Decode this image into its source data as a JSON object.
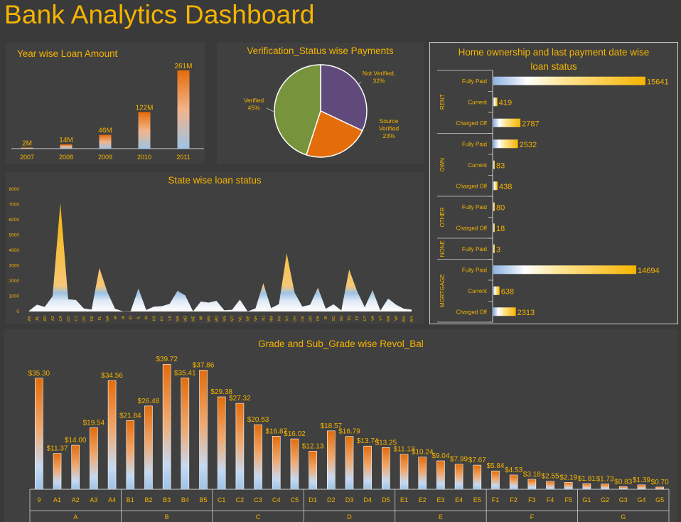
{
  "dashboard": {
    "title": "Bank Analytics Dashboard"
  },
  "colors": {
    "background": "#3a3a3a",
    "panel": "#404040",
    "accent": "#f5b400",
    "orange": "#e46c0a",
    "blue": "#9dc3e6",
    "pie_green": "#77933c",
    "pie_purple": "#604a7b",
    "pie_orange": "#e46c0a"
  },
  "chart_data": [
    {
      "id": "year",
      "type": "bar",
      "title": "Year wise Loan Amount",
      "categories": [
        "2007",
        "2008",
        "2009",
        "2010",
        "2011"
      ],
      "values": [
        2,
        14,
        46,
        122,
        261
      ],
      "labels": [
        "2M",
        "14M",
        "46M",
        "122M",
        "261M"
      ],
      "ylim": [
        0,
        261
      ]
    },
    {
      "id": "verification",
      "type": "pie",
      "title": "Verification_Status wise Payments",
      "slices": [
        {
          "name": "Not Verified",
          "value": 32,
          "label": "32%"
        },
        {
          "name": "Source Verified",
          "value": 23,
          "label": "23%"
        },
        {
          "name": "Verified",
          "value": 45,
          "label": "45%"
        }
      ]
    },
    {
      "id": "state",
      "type": "area",
      "title": "State wise loan status",
      "ylim": [
        0,
        8000
      ],
      "yticks": [
        0,
        1000,
        2000,
        3000,
        4000,
        5000,
        6000,
        7000,
        8000
      ],
      "x": [
        "AK",
        "AL",
        "AR",
        "AZ",
        "CA",
        "CO",
        "CT",
        "DC",
        "DE",
        "FL",
        "GA",
        "HI",
        "IA",
        "ID",
        "IL",
        "IN",
        "KS",
        "KY",
        "LA",
        "MA",
        "MD",
        "ME",
        "MI",
        "MN",
        "MO",
        "MS",
        "MT",
        "NC",
        "NE",
        "NH",
        "NJ",
        "NM",
        "NV",
        "NY",
        "OH",
        "OK",
        "OR",
        "PA",
        "RI",
        "SC",
        "SD",
        "TN",
        "TX",
        "UT",
        "VA",
        "VT",
        "WA",
        "WI",
        "WV",
        "WY"
      ],
      "values": [
        50,
        450,
        300,
        1000,
        7100,
        800,
        750,
        200,
        120,
        2850,
        1300,
        180,
        10,
        20,
        1500,
        100,
        320,
        350,
        500,
        1350,
        1050,
        10,
        650,
        580,
        700,
        80,
        110,
        780,
        5,
        200,
        1850,
        220,
        480,
        3800,
        1250,
        320,
        440,
        1550,
        180,
        470,
        70,
        2750,
        1350,
        280,
        1400,
        60,
        850,
        450,
        180,
        120
      ],
      "fill_top": "#f5b400",
      "fill_mid": "#9dc3e6"
    },
    {
      "id": "home",
      "type": "bar",
      "orientation": "horizontal",
      "title": "Home ownership and last payment date wise loan status",
      "groups": [
        {
          "name": "RENT",
          "items": [
            {
              "label": "Fully Paid",
              "value": 15641
            },
            {
              "label": "Current",
              "value": 419
            },
            {
              "label": "Charged Off",
              "value": 2787
            }
          ]
        },
        {
          "name": "OWN",
          "items": [
            {
              "label": "Fully Paid",
              "value": 2532
            },
            {
              "label": "Current",
              "value": 83
            },
            {
              "label": "Charged Off",
              "value": 438
            }
          ]
        },
        {
          "name": "OTHER",
          "items": [
            {
              "label": "Fully Paid",
              "value": 80
            },
            {
              "label": "Charged Off",
              "value": 18
            }
          ]
        },
        {
          "name": "NONE",
          "items": [
            {
              "label": "Fully Paid",
              "value": 3
            }
          ]
        },
        {
          "name": "MORTGAGE",
          "items": [
            {
              "label": "Fully Paid",
              "value": 14694
            },
            {
              "label": "Current",
              "value": 638
            },
            {
              "label": "Charged Off",
              "value": 2313
            }
          ]
        }
      ]
    },
    {
      "id": "grade",
      "type": "bar",
      "title": "Grade and Sub_Grade wise Revol_Bal",
      "ylim": [
        0,
        40
      ],
      "groups": [
        {
          "name": "A",
          "items": [
            {
              "label": "9",
              "value": 35.3,
              "text": "$35.30"
            },
            {
              "label": "A1",
              "value": 11.37,
              "text": "$11.37"
            },
            {
              "label": "A2",
              "value": 14.0,
              "text": "$14.00"
            },
            {
              "label": "A3",
              "value": 19.54,
              "text": "$19.54"
            },
            {
              "label": "A4",
              "value": 34.56,
              "text": "$34.56"
            }
          ]
        },
        {
          "name": "B",
          "items": [
            {
              "label": "B1",
              "value": 21.84,
              "text": "$21.84"
            },
            {
              "label": "B2",
              "value": 26.48,
              "text": "$26.48"
            },
            {
              "label": "B3",
              "value": 39.72,
              "text": "$39.72"
            },
            {
              "label": "B4",
              "value": 35.41,
              "text": "$35.41"
            },
            {
              "label": "B5",
              "value": 37.86,
              "text": "$37.86"
            }
          ]
        },
        {
          "name": "C",
          "items": [
            {
              "label": "C1",
              "value": 29.38,
              "text": "$29.38"
            },
            {
              "label": "C2",
              "value": 27.32,
              "text": "$27.32"
            },
            {
              "label": "C3",
              "value": 20.53,
              "text": "$20.53"
            },
            {
              "label": "C4",
              "value": 16.87,
              "text": "$16.87"
            },
            {
              "label": "C5",
              "value": 16.02,
              "text": "$16.02"
            }
          ]
        },
        {
          "name": "D",
          "items": [
            {
              "label": "D1",
              "value": 12.13,
              "text": "$12.13"
            },
            {
              "label": "D2",
              "value": 18.57,
              "text": "$18.57"
            },
            {
              "label": "D3",
              "value": 16.79,
              "text": "$16.79"
            },
            {
              "label": "D4",
              "value": 13.74,
              "text": "$13.74"
            },
            {
              "label": "D5",
              "value": 13.25,
              "text": "$13.25"
            }
          ]
        },
        {
          "name": "E",
          "items": [
            {
              "label": "E1",
              "value": 11.13,
              "text": "$11.13"
            },
            {
              "label": "E2",
              "value": 10.24,
              "text": "$10.24"
            },
            {
              "label": "E3",
              "value": 9.04,
              "text": "$9.04"
            },
            {
              "label": "E4",
              "value": 7.99,
              "text": "$7.99"
            },
            {
              "label": "E5",
              "value": 7.67,
              "text": "$7.67"
            }
          ]
        },
        {
          "name": "F",
          "items": [
            {
              "label": "F1",
              "value": 5.84,
              "text": "$5.84"
            },
            {
              "label": "F2",
              "value": 4.53,
              "text": "$4.53"
            },
            {
              "label": "F3",
              "value": 3.18,
              "text": "$3.18"
            },
            {
              "label": "F4",
              "value": 2.55,
              "text": "$2.55"
            },
            {
              "label": "F5",
              "value": 2.19,
              "text": "$2.19"
            }
          ]
        },
        {
          "name": "G",
          "items": [
            {
              "label": "G1",
              "value": 1.81,
              "text": "$1.81"
            },
            {
              "label": "G2",
              "value": 1.73,
              "text": "$1.73"
            },
            {
              "label": "G3",
              "value": 0.83,
              "text": "$0.83"
            },
            {
              "label": "G4",
              "value": 1.39,
              "text": "$1.39"
            },
            {
              "label": "G5",
              "value": 0.7,
              "text": "$0.70"
            }
          ]
        }
      ]
    }
  ]
}
